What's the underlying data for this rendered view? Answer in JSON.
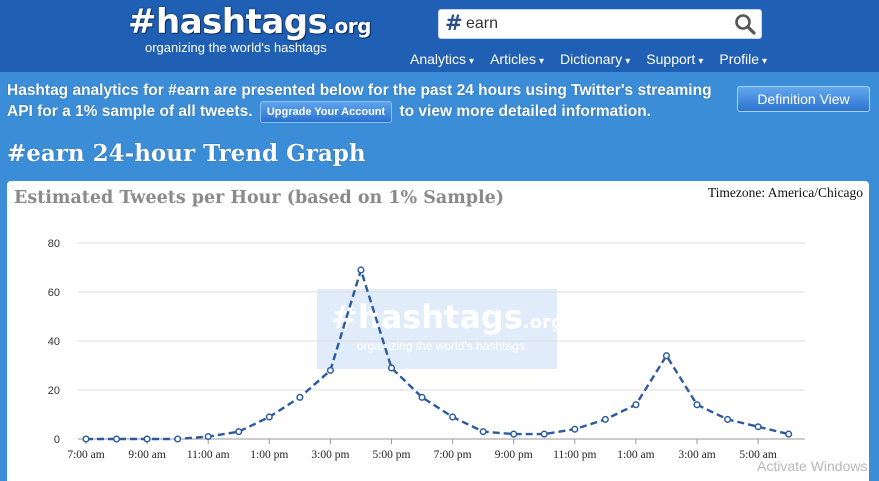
{
  "header": {
    "logo_hash": "#",
    "logo_name": "hashtags",
    "logo_tld": ".org",
    "tagline": "organizing the world's hashtags",
    "search_value": "earn",
    "nav": [
      "Analytics",
      "Articles",
      "Dictionary",
      "Support",
      "Profile"
    ]
  },
  "info": {
    "text_part1": "Hashtag analytics for #earn are presented below for the past 24 hours using Twitter's streaming API for a 1% sample of all tweets.",
    "upgrade_label": "Upgrade Your Account",
    "text_part2": "to view more detailed information.",
    "definition_label": "Definition View"
  },
  "page_title": "#earn 24-hour Trend Graph",
  "watermark": {
    "hash": "#",
    "name": "hashtags",
    "tld": ".org",
    "tagline": "organizing the world's hashtags"
  },
  "chart_data": {
    "type": "line",
    "title": "Estimated Tweets per Hour (based on 1% Sample)",
    "timezone_label": "Timezone: America/Chicago",
    "ylim": [
      0,
      80
    ],
    "yticks": [
      0,
      20,
      40,
      60,
      80
    ],
    "x_tick_labels": [
      "7:00 am",
      "9:00 am",
      "11:00 am",
      "1:00 pm",
      "3:00 pm",
      "5:00 pm",
      "7:00 pm",
      "9:00 pm",
      "11:00 pm",
      "1:00 am",
      "3:00 am",
      "5:00 am"
    ],
    "x": [
      "7:00 am",
      "8:00 am",
      "9:00 am",
      "10:00 am",
      "11:00 am",
      "12:00 pm",
      "1:00 pm",
      "2:00 pm",
      "3:00 pm",
      "4:00 pm",
      "5:00 pm",
      "6:00 pm",
      "7:00 pm",
      "8:00 pm",
      "9:00 pm",
      "10:00 pm",
      "11:00 pm",
      "12:00 am",
      "1:00 am",
      "2:00 am",
      "3:00 am",
      "4:00 am",
      "5:00 am",
      "6:00 am"
    ],
    "series": [
      {
        "values": [
          0,
          0,
          0,
          0,
          1,
          3,
          9,
          17,
          28,
          69,
          29,
          17,
          9,
          3,
          2,
          2,
          4,
          8,
          14,
          34,
          14,
          8,
          5,
          2
        ],
        "color": "#2c5aa0",
        "line_style": "dashed",
        "marker": "circle"
      }
    ],
    "grid": true,
    "legend": "none"
  },
  "os_overlay": "Activate Windows"
}
